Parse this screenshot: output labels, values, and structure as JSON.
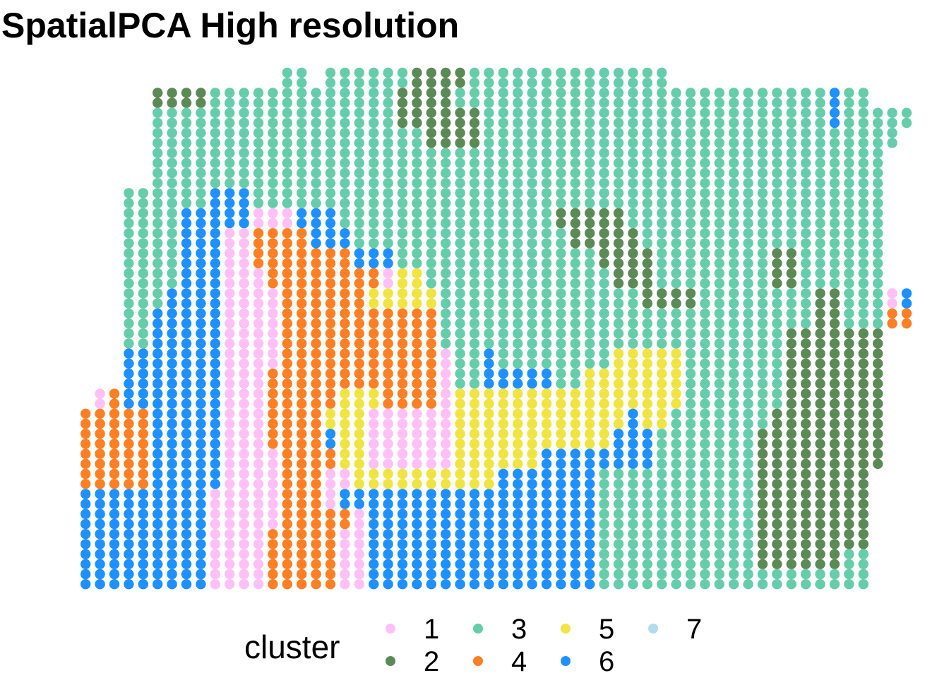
{
  "chart_data": {
    "type": "scatter",
    "title": "SpatialPCA High resolution",
    "xlabel": "",
    "ylabel": "",
    "grid": false,
    "axes_visible": false,
    "legend": {
      "title": "cluster",
      "position": "bottom",
      "entries": [
        {
          "label": "1",
          "color": "#FFC0F5"
        },
        {
          "label": "2",
          "color": "#5C8A57"
        },
        {
          "label": "3",
          "color": "#66CDAA"
        },
        {
          "label": "4",
          "color": "#FF7F24"
        },
        {
          "label": "5",
          "color": "#F0E442"
        },
        {
          "label": "6",
          "color": "#1E90FF"
        },
        {
          "label": "7",
          "color": "#B0DCEC"
        }
      ]
    },
    "spot_grid": {
      "columns": 61,
      "rows": 38,
      "cell_codes": "0 = no spot, 1-7 = cluster id; row 1 is the top of the tissue",
      "rows_data": [
        "0000000000000000033033333322223333333333333300000000000000000",
        "0000000022223333333333333222233333333333333333333333333633000",
        "0000000033333333333333333222222333333333333333333333333633333",
        "0000000033333333333333333332222333333333333333333333333333330",
        "0000000033333333333333333333333333333333333333333333333333300",
        "0000000033333333333333333333333333333333333333333333333333300",
        "0000003333336663333333333333333333333333333333333333333333300",
        "0000003333666661116663333333333333332222233333333333333333300",
        "0000003333666114444666333333333333333222223333333333333333300",
        "0000003333666114444444666333333333333332222333333332233333300",
        "0000003333666111444444441553333333333333222333333332233333300",
        "0000003336666111144444455555333333333333332222333333332233316",
        "0000003366666111144444444444333333333333333333333333332233344",
        "0000003366666111144444444444333333333333333333333333222222200",
        "0000006666666111144444444444133633333333555553333333222222200",
        "0000006666666111444444444444133666663355555553333333222222200",
        "0000146666666111444445554444155555555555555553333333222222200",
        "0004444466666111444455511111155555555555565533333332222222200",
        "0004444466666111444465511111155555555555666333333322222222200",
        "0004444466666111144445511111155555566666666333333322222222200",
        "0004444466666111144411555555555566666663333333333322222222200",
        "0006666666661111144416666666666666666663333333333322222222200",
        "0006666666661111144444166666666666666663333333333322222222200",
        "0006666666661111444441166666666666666663333333333322222222200",
        "0006666666661111444441166666666666666663333333333322222233300",
        "0006666666661111444441166666666666666663333333333333333333300",
        "0006666666661111444441166666666666666663333333333333333333300",
        "0006666666661111444441166666666666666663333333333333333333300",
        "0006666666661111444441166666666666666663333333333333333333300",
        "0006666666661111444441166666666666666663333333333333333333300",
        "0006666666661111444441166666666666666663333333333333333333300",
        "0006666666661111444441166666666666666663333333333333333333300",
        "0006666666661111444441166666666666666663333333333333333333300",
        "0006666666661111444441166666666666666663333333333333333333300",
        "0006666666661111444441166666666666666663333333333333333333300",
        "0006666666661111444441166666666666666663333333333333333333300",
        "0006666666661111444441166666666666666663333333333333333333300",
        "0006666666661111444441166666666666666663333333333333333333300"
      ],
      "regions_in_grid_units": [
        {
          "cluster": "3",
          "col": [
            6,
            61
          ],
          "row": [
            1,
            11
          ],
          "note": "upper tissue background"
        },
        {
          "cluster": "3",
          "col": [
            28,
            53
          ],
          "row": [
            11,
            21
          ]
        },
        {
          "cluster": "3",
          "col": [
            33,
            55
          ],
          "row": [
            21,
            25
          ]
        },
        {
          "cluster": "3",
          "col": [
            8,
            11
          ],
          "row": [
            31,
            36
          ]
        },
        {
          "cluster": "2",
          "col": [
            6,
            10
          ],
          "row": [
            1,
            2
          ]
        },
        {
          "cluster": "2",
          "col": [
            25,
            32
          ],
          "row": [
            0,
            5
          ]
        },
        {
          "cluster": "2",
          "col": [
            37,
            43
          ],
          "row": [
            8,
            12
          ]
        },
        {
          "cluster": "2",
          "col": [
            49,
            56
          ],
          "row": [
            12,
            19
          ]
        },
        {
          "cluster": "2",
          "col": [
            52,
            55
          ],
          "row": [
            9,
            11
          ]
        },
        {
          "cluster": "1",
          "col": [
            11,
            20
          ],
          "row": [
            7,
            17
          ]
        },
        {
          "cluster": "1",
          "col": [
            17,
            26
          ],
          "row": [
            17,
            21
          ]
        },
        {
          "cluster": "1",
          "col": [
            2,
            11
          ],
          "row": [
            23,
            26
          ]
        },
        {
          "cluster": "1",
          "col": [
            9,
            17
          ],
          "row": [
            21,
            32
          ]
        },
        {
          "cluster": "1",
          "col": [
            19,
            26
          ],
          "row": [
            26,
            33
          ]
        },
        {
          "cluster": "1",
          "col": [
            59,
            60
          ],
          "row": [
            11,
            12
          ]
        },
        {
          "cluster": "4",
          "col": [
            16,
            23
          ],
          "row": [
            7,
            15
          ]
        },
        {
          "cluster": "4",
          "col": [
            20,
            28
          ],
          "row": [
            11,
            15
          ]
        },
        {
          "cluster": "4",
          "col": [
            4,
            8
          ],
          "row": [
            16,
            22
          ]
        },
        {
          "cluster": "4",
          "col": [
            2,
            7
          ],
          "row": [
            24,
            29
          ]
        },
        {
          "cluster": "4",
          "col": [
            11,
            21
          ],
          "row": [
            21,
            30
          ]
        },
        {
          "cluster": "4",
          "col": [
            22,
            32
          ],
          "row": [
            26,
            34
          ]
        },
        {
          "cluster": "4",
          "col": [
            59,
            60
          ],
          "row": [
            12,
            13
          ]
        },
        {
          "cluster": "5",
          "col": [
            21,
            28
          ],
          "row": [
            10,
            12
          ]
        },
        {
          "cluster": "5",
          "col": [
            17,
            21
          ],
          "row": [
            15,
            19
          ]
        },
        {
          "cluster": "5",
          "col": [
            27,
            40
          ],
          "row": [
            14,
            19
          ]
        },
        {
          "cluster": "5",
          "col": [
            36,
            43
          ],
          "row": [
            13,
            16
          ]
        },
        {
          "cluster": "5",
          "col": [
            25,
            34
          ],
          "row": [
            20,
            29
          ]
        },
        {
          "cluster": "5",
          "col": [
            25,
            30
          ],
          "row": [
            33,
            35
          ]
        },
        {
          "cluster": "6",
          "col": [
            7,
            17
          ],
          "row": [
            5,
            23
          ]
        },
        {
          "cluster": "6",
          "col": [
            14,
            21
          ],
          "row": [
            10,
            19
          ]
        },
        {
          "cluster": "6",
          "col": [
            20,
            26
          ],
          "row": [
            18,
            26
          ]
        },
        {
          "cluster": "6",
          "col": [
            27,
            33
          ],
          "row": [
            18,
            22
          ]
        },
        {
          "cluster": "6",
          "col": [
            2,
            10
          ],
          "row": [
            29,
            32
          ]
        },
        {
          "cluster": "6",
          "col": [
            12,
            22
          ],
          "row": [
            31,
            35
          ]
        },
        {
          "cluster": "6",
          "col": [
            33,
            38
          ],
          "row": [
            24,
            27
          ]
        },
        {
          "cluster": "6",
          "col": [
            55,
            56
          ],
          "row": [
            1,
            3
          ]
        },
        {
          "cluster": "7",
          "col": [
            37,
            53
          ],
          "row": [
            20,
            31
          ]
        },
        {
          "cluster": "7",
          "col": [
            33,
            40
          ],
          "row": [
            26,
            32
          ]
        }
      ]
    }
  }
}
